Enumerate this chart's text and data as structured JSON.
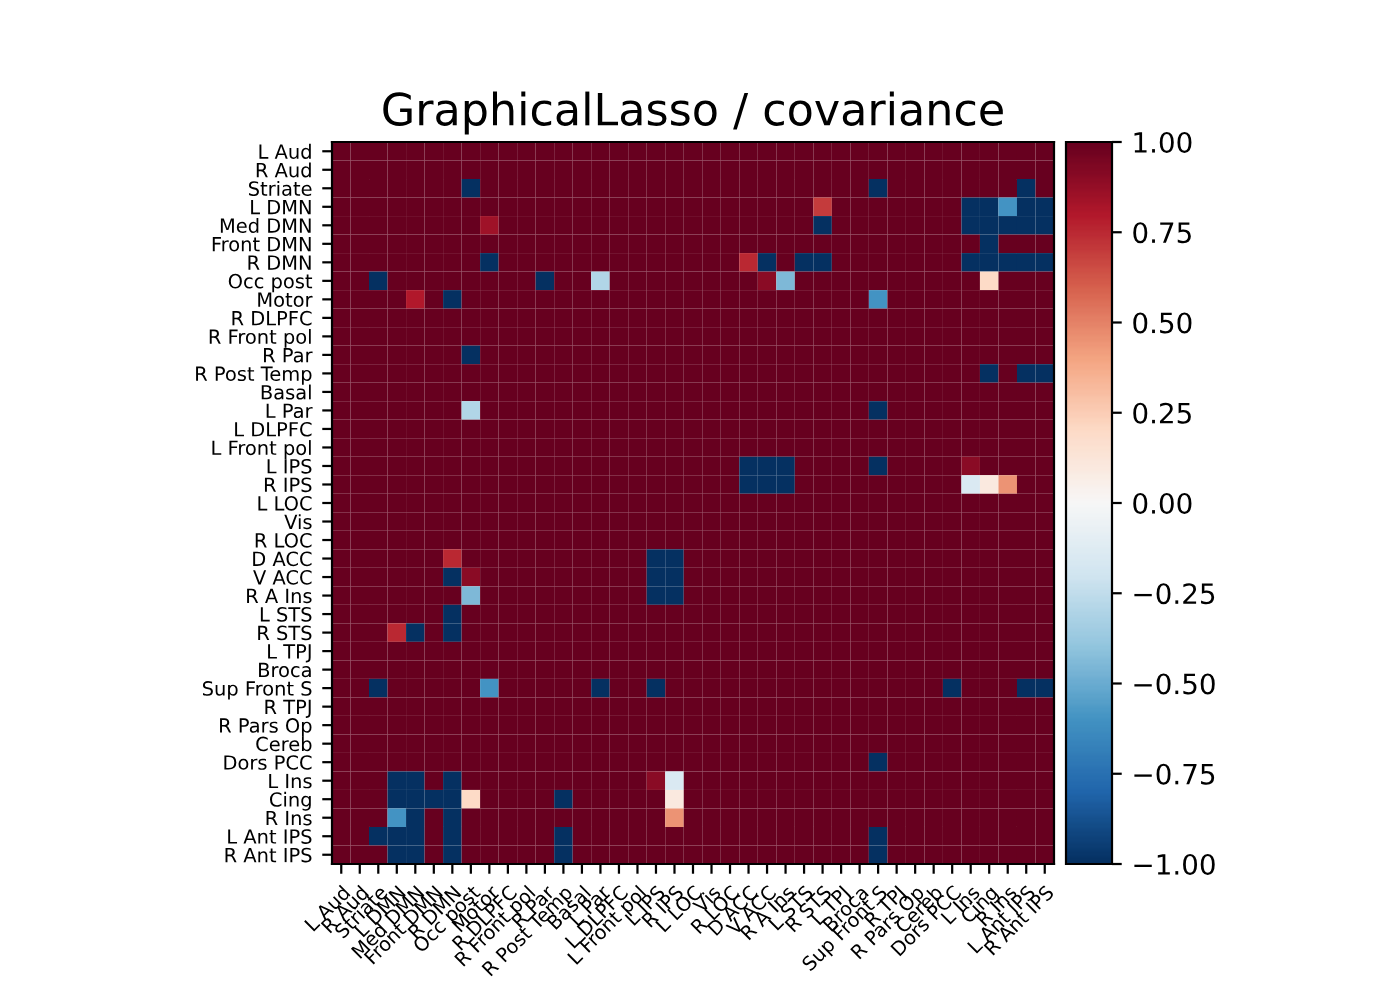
{
  "chart_data": {
    "type": "heatmap",
    "title": "GraphicalLasso / covariance",
    "categories": [
      "L Aud",
      "R Aud",
      "Striate",
      "L DMN",
      "Med DMN",
      "Front DMN",
      "R DMN",
      "Occ post",
      "Motor",
      "R DLPFC",
      "R Front pol",
      "R Par",
      "R Post Temp",
      "Basal",
      "L Par",
      "L DLPFC",
      "L Front pol",
      "L IPS",
      "R IPS",
      "L LOC",
      "Vis",
      "R LOC",
      "D ACC",
      "V ACC",
      "R A Ins",
      "L STS",
      "R STS",
      "L TPJ",
      "Broca",
      "Sup Front S",
      "R TPJ",
      "R Pars Op",
      "Cereb",
      "Dors PCC",
      "L Ins",
      "Cing",
      "R Ins",
      "L Ant IPS",
      "R Ant IPS"
    ],
    "y_categories": [
      "L Aud",
      "R Aud",
      "Striate",
      "L DMN",
      "Med DMN",
      "Front DMN",
      "R DMN",
      "Occ post",
      "Motor",
      "R DLPFC",
      "R Front pol",
      "R Par",
      "R Post Temp",
      "Basal",
      "L Par",
      "L DLPFC",
      "L Front pol",
      "L IPS",
      "R IPS",
      "L LOC",
      "Vis",
      "R LOC",
      "D ACC",
      "V ACC",
      "R A Ins",
      "L STS",
      "R STS",
      "L TPJ",
      "Broca",
      "Sup Front S",
      "R TPJ",
      "R Pars Op",
      "Cereb",
      "Dors PCC",
      "L Ins",
      "Cing",
      "R Ins",
      "L Ant IPS",
      "R Ant IPS"
    ],
    "cells": [
      [
        1,
        1,
        1,
        1,
        1,
        1,
        1,
        1,
        1,
        1,
        1,
        1,
        1,
        1,
        1,
        1,
        1,
        1,
        1,
        1,
        1,
        1,
        1,
        1,
        1,
        1,
        1,
        1,
        1,
        1,
        1,
        1,
        1,
        1,
        1,
        1,
        1,
        1,
        1
      ],
      [
        1,
        1,
        1,
        1,
        1,
        1,
        1,
        1,
        1,
        1,
        1,
        1,
        1,
        1,
        1,
        1,
        1,
        1,
        1,
        1,
        1,
        1,
        1,
        1,
        1,
        1,
        1,
        1,
        1,
        1,
        1,
        1,
        1,
        1,
        1,
        1,
        1,
        1,
        1
      ],
      [
        1,
        1,
        1,
        1,
        1,
        1,
        1,
        -1,
        1,
        1,
        1,
        1,
        1,
        1,
        1,
        1,
        1,
        1,
        1,
        1,
        1,
        1,
        1,
        1,
        1,
        1,
        1,
        1,
        1,
        -1,
        1,
        1,
        1,
        1,
        1,
        1,
        1,
        -1,
        1
      ],
      [
        1,
        1,
        1,
        1,
        1,
        1,
        1,
        1,
        1,
        1,
        1,
        1,
        1,
        1,
        1,
        1,
        1,
        1,
        1,
        1,
        1,
        1,
        1,
        1,
        1,
        1,
        0.7,
        1,
        1,
        1,
        1,
        1,
        1,
        1,
        -1,
        -1,
        -0.6,
        -1,
        -1
      ],
      [
        1,
        1,
        1,
        1,
        1,
        1,
        1,
        1,
        0.85,
        1,
        1,
        1,
        1,
        1,
        1,
        1,
        1,
        1,
        1,
        1,
        1,
        1,
        1,
        1,
        1,
        1,
        -1,
        1,
        1,
        1,
        1,
        1,
        1,
        1,
        -1,
        -1,
        -1,
        -1,
        -1
      ],
      [
        1,
        1,
        1,
        1,
        1,
        1,
        1,
        1,
        1,
        1,
        1,
        1,
        1,
        1,
        1,
        1,
        1,
        1,
        1,
        1,
        1,
        1,
        1,
        1,
        1,
        1,
        1,
        1,
        1,
        1,
        1,
        1,
        1,
        1,
        1,
        -1,
        1,
        1,
        1
      ],
      [
        1,
        1,
        1,
        1,
        1,
        1,
        1,
        1,
        -1,
        1,
        1,
        1,
        1,
        1,
        1,
        1,
        1,
        1,
        1,
        1,
        1,
        1,
        0.75,
        -1,
        1,
        -1,
        -1,
        1,
        1,
        1,
        1,
        1,
        1,
        1,
        -1,
        -1,
        -1,
        -1,
        -1
      ],
      [
        1,
        1,
        -1,
        1,
        1,
        1,
        1,
        1,
        1,
        1,
        1,
        -1,
        1,
        1,
        -0.3,
        1,
        1,
        1,
        1,
        1,
        1,
        1,
        1,
        0.9,
        -0.45,
        1,
        1,
        1,
        1,
        1,
        1,
        1,
        1,
        1,
        1,
        0.2,
        1,
        1,
        1
      ],
      [
        1,
        1,
        1,
        1,
        0.8,
        1,
        -1,
        1,
        1,
        1,
        1,
        1,
        1,
        1,
        1,
        1,
        1,
        1,
        1,
        1,
        1,
        1,
        1,
        1,
        1,
        1,
        1,
        1,
        1,
        -0.6,
        1,
        1,
        1,
        1,
        1,
        1,
        1,
        1,
        1
      ],
      [
        1,
        1,
        1,
        1,
        1,
        1,
        1,
        1,
        1,
        1,
        1,
        1,
        1,
        1,
        1,
        1,
        1,
        1,
        1,
        1,
        1,
        1,
        1,
        1,
        1,
        1,
        1,
        1,
        1,
        1,
        1,
        1,
        1,
        1,
        1,
        1,
        1,
        1,
        1
      ],
      [
        1,
        1,
        1,
        1,
        1,
        1,
        1,
        1,
        1,
        1,
        1,
        1,
        1,
        1,
        1,
        1,
        1,
        1,
        1,
        1,
        1,
        1,
        1,
        1,
        1,
        1,
        1,
        1,
        1,
        1,
        1,
        1,
        1,
        1,
        1,
        1,
        1,
        1,
        1
      ],
      [
        1,
        1,
        1,
        1,
        1,
        1,
        1,
        -1,
        1,
        1,
        1,
        1,
        1,
        1,
        1,
        1,
        1,
        1,
        1,
        1,
        1,
        1,
        1,
        1,
        1,
        1,
        1,
        1,
        1,
        1,
        1,
        1,
        1,
        1,
        1,
        1,
        1,
        1,
        1
      ],
      [
        1,
        1,
        1,
        1,
        1,
        1,
        1,
        1,
        1,
        1,
        1,
        1,
        1,
        1,
        1,
        1,
        1,
        1,
        1,
        1,
        1,
        1,
        1,
        1,
        1,
        1,
        1,
        1,
        1,
        1,
        1,
        1,
        1,
        1,
        1,
        -1,
        1,
        -1,
        -1
      ],
      [
        1,
        1,
        1,
        1,
        1,
        1,
        1,
        1,
        1,
        1,
        1,
        1,
        1,
        1,
        1,
        1,
        1,
        1,
        1,
        1,
        1,
        1,
        1,
        1,
        1,
        1,
        1,
        1,
        1,
        1,
        1,
        1,
        1,
        1,
        1,
        1,
        1,
        1,
        1
      ],
      [
        1,
        1,
        1,
        1,
        1,
        1,
        1,
        -0.3,
        1,
        1,
        1,
        1,
        1,
        1,
        1,
        1,
        1,
        1,
        1,
        1,
        1,
        1,
        1,
        1,
        1,
        1,
        1,
        1,
        1,
        -1,
        1,
        1,
        1,
        1,
        1,
        1,
        1,
        1,
        1
      ],
      [
        1,
        1,
        1,
        1,
        1,
        1,
        1,
        1,
        1,
        1,
        1,
        1,
        1,
        1,
        1,
        1,
        1,
        1,
        1,
        1,
        1,
        1,
        1,
        1,
        1,
        1,
        1,
        1,
        1,
        1,
        1,
        1,
        1,
        1,
        1,
        1,
        1,
        1,
        1
      ],
      [
        1,
        1,
        1,
        1,
        1,
        1,
        1,
        1,
        1,
        1,
        1,
        1,
        1,
        1,
        1,
        1,
        1,
        1,
        1,
        1,
        1,
        1,
        1,
        1,
        1,
        1,
        1,
        1,
        1,
        1,
        1,
        1,
        1,
        1,
        1,
        1,
        1,
        1,
        1
      ],
      [
        1,
        1,
        1,
        1,
        1,
        1,
        1,
        1,
        1,
        1,
        1,
        1,
        1,
        1,
        1,
        1,
        1,
        1,
        1,
        1,
        1,
        1,
        -1,
        -1,
        -1,
        1,
        1,
        1,
        1,
        -1,
        1,
        1,
        1,
        1,
        0.9,
        1,
        1,
        1,
        1
      ],
      [
        1,
        1,
        1,
        1,
        1,
        1,
        1,
        1,
        1,
        1,
        1,
        1,
        1,
        1,
        1,
        1,
        1,
        1,
        1,
        1,
        1,
        1,
        -1,
        -1,
        -1,
        1,
        1,
        1,
        1,
        1,
        1,
        1,
        1,
        1,
        -0.15,
        0.1,
        0.45,
        1,
        1
      ],
      [
        1,
        1,
        1,
        1,
        1,
        1,
        1,
        1,
        1,
        1,
        1,
        1,
        1,
        1,
        1,
        1,
        1,
        1,
        1,
        1,
        1,
        1,
        1,
        1,
        1,
        1,
        1,
        1,
        1,
        1,
        1,
        1,
        1,
        1,
        1,
        1,
        1,
        1,
        1
      ],
      [
        1,
        1,
        1,
        1,
        1,
        1,
        1,
        1,
        1,
        1,
        1,
        1,
        1,
        1,
        1,
        1,
        1,
        1,
        1,
        1,
        1,
        1,
        1,
        1,
        1,
        1,
        1,
        1,
        1,
        1,
        1,
        1,
        1,
        1,
        1,
        1,
        1,
        1,
        1
      ],
      [
        1,
        1,
        1,
        1,
        1,
        1,
        1,
        1,
        1,
        1,
        1,
        1,
        1,
        1,
        1,
        1,
        1,
        1,
        1,
        1,
        1,
        1,
        1,
        1,
        1,
        1,
        1,
        1,
        1,
        1,
        1,
        1,
        1,
        1,
        1,
        1,
        1,
        1,
        1
      ],
      [
        1,
        1,
        1,
        1,
        1,
        1,
        0.75,
        1,
        1,
        1,
        1,
        1,
        1,
        1,
        1,
        1,
        1,
        -1,
        -1,
        1,
        1,
        1,
        1,
        1,
        1,
        1,
        1,
        1,
        1,
        1,
        1,
        1,
        1,
        1,
        1,
        1,
        1,
        1,
        1
      ],
      [
        1,
        1,
        1,
        1,
        1,
        1,
        -1,
        0.9,
        1,
        1,
        1,
        1,
        1,
        1,
        1,
        1,
        1,
        -1,
        -1,
        1,
        1,
        1,
        1,
        1,
        1,
        1,
        1,
        1,
        1,
        1,
        1,
        1,
        1,
        1,
        1,
        1,
        1,
        1,
        1
      ],
      [
        1,
        1,
        1,
        1,
        1,
        1,
        1,
        -0.45,
        1,
        1,
        1,
        1,
        1,
        1,
        1,
        1,
        1,
        -1,
        -1,
        1,
        1,
        1,
        1,
        1,
        1,
        1,
        1,
        1,
        1,
        1,
        1,
        1,
        1,
        1,
        1,
        1,
        1,
        1,
        1
      ],
      [
        1,
        1,
        1,
        1,
        1,
        1,
        -1,
        1,
        1,
        1,
        1,
        1,
        1,
        1,
        1,
        1,
        1,
        1,
        1,
        1,
        1,
        1,
        1,
        1,
        1,
        1,
        1,
        1,
        1,
        1,
        1,
        1,
        1,
        1,
        1,
        1,
        1,
        1,
        1
      ],
      [
        1,
        1,
        1,
        0.75,
        -1,
        1,
        -1,
        1,
        1,
        1,
        1,
        1,
        1,
        1,
        1,
        1,
        1,
        1,
        1,
        1,
        1,
        1,
        1,
        1,
        1,
        1,
        1,
        1,
        1,
        1,
        1,
        1,
        1,
        1,
        1,
        1,
        1,
        1,
        1
      ],
      [
        1,
        1,
        1,
        1,
        1,
        1,
        1,
        1,
        1,
        1,
        1,
        1,
        1,
        1,
        1,
        1,
        1,
        1,
        1,
        1,
        1,
        1,
        1,
        1,
        1,
        1,
        1,
        1,
        1,
        1,
        1,
        1,
        1,
        1,
        1,
        1,
        1,
        1,
        1
      ],
      [
        1,
        1,
        1,
        1,
        1,
        1,
        1,
        1,
        1,
        1,
        1,
        1,
        1,
        1,
        1,
        1,
        1,
        1,
        1,
        1,
        1,
        1,
        1,
        1,
        1,
        1,
        1,
        1,
        1,
        1,
        1,
        1,
        1,
        1,
        1,
        1,
        1,
        1,
        1
      ],
      [
        1,
        1,
        -1,
        1,
        1,
        1,
        1,
        1,
        -0.6,
        1,
        1,
        1,
        1,
        1,
        -1,
        1,
        1,
        -1,
        1,
        1,
        1,
        1,
        1,
        1,
        1,
        1,
        1,
        1,
        1,
        1,
        1,
        1,
        1,
        -1,
        1,
        1,
        1,
        -1,
        -1
      ],
      [
        1,
        1,
        1,
        1,
        1,
        1,
        1,
        1,
        1,
        1,
        1,
        1,
        1,
        1,
        1,
        1,
        1,
        1,
        1,
        1,
        1,
        1,
        1,
        1,
        1,
        1,
        1,
        1,
        1,
        1,
        1,
        1,
        1,
        1,
        1,
        1,
        1,
        1,
        1
      ],
      [
        1,
        1,
        1,
        1,
        1,
        1,
        1,
        1,
        1,
        1,
        1,
        1,
        1,
        1,
        1,
        1,
        1,
        1,
        1,
        1,
        1,
        1,
        1,
        1,
        1,
        1,
        1,
        1,
        1,
        1,
        1,
        1,
        1,
        1,
        1,
        1,
        1,
        1,
        1
      ],
      [
        1,
        1,
        1,
        1,
        1,
        1,
        1,
        1,
        1,
        1,
        1,
        1,
        1,
        1,
        1,
        1,
        1,
        1,
        1,
        1,
        1,
        1,
        1,
        1,
        1,
        1,
        1,
        1,
        1,
        1,
        1,
        1,
        1,
        1,
        1,
        1,
        1,
        1,
        1
      ],
      [
        1,
        1,
        1,
        1,
        1,
        1,
        1,
        1,
        1,
        1,
        1,
        1,
        1,
        1,
        1,
        1,
        1,
        1,
        1,
        1,
        1,
        1,
        1,
        1,
        1,
        1,
        1,
        1,
        1,
        -1,
        1,
        1,
        1,
        1,
        1,
        1,
        1,
        1,
        1
      ],
      [
        1,
        1,
        1,
        -1,
        -1,
        1,
        -1,
        1,
        1,
        1,
        1,
        1,
        1,
        1,
        1,
        1,
        1,
        0.9,
        -0.15,
        1,
        1,
        1,
        1,
        1,
        1,
        1,
        1,
        1,
        1,
        1,
        1,
        1,
        1,
        1,
        1,
        1,
        1,
        1,
        1
      ],
      [
        1,
        1,
        1,
        -1,
        -1,
        -1,
        -1,
        0.2,
        1,
        1,
        1,
        1,
        -1,
        1,
        1,
        1,
        1,
        1,
        0.1,
        1,
        1,
        1,
        1,
        1,
        1,
        1,
        1,
        1,
        1,
        1,
        1,
        1,
        1,
        1,
        1,
        1,
        1,
        1,
        1
      ],
      [
        1,
        1,
        1,
        -0.6,
        -1,
        1,
        -1,
        1,
        1,
        1,
        1,
        1,
        1,
        1,
        1,
        1,
        1,
        1,
        0.45,
        1,
        1,
        1,
        1,
        1,
        1,
        1,
        1,
        1,
        1,
        1,
        1,
        1,
        1,
        1,
        1,
        1,
        1,
        1,
        1
      ],
      [
        1,
        1,
        -1,
        -1,
        -1,
        1,
        -1,
        1,
        1,
        1,
        1,
        1,
        -1,
        1,
        1,
        1,
        1,
        1,
        1,
        1,
        1,
        1,
        1,
        1,
        1,
        1,
        1,
        1,
        1,
        -1,
        1,
        1,
        1,
        1,
        1,
        1,
        1,
        1,
        1
      ],
      [
        1,
        1,
        1,
        -1,
        -1,
        1,
        -1,
        1,
        1,
        1,
        1,
        1,
        -1,
        1,
        1,
        1,
        1,
        1,
        1,
        1,
        1,
        1,
        1,
        1,
        1,
        1,
        1,
        1,
        1,
        -1,
        1,
        1,
        1,
        1,
        1,
        1,
        1,
        1,
        1
      ]
    ],
    "clim": [
      -1,
      1
    ],
    "cticks": [
      {
        "value": -1,
        "label": "−1.00"
      },
      {
        "value": -0.75,
        "label": "−0.75"
      },
      {
        "value": -0.5,
        "label": "−0.50"
      },
      {
        "value": -0.25,
        "label": "−0.25"
      },
      {
        "value": 0,
        "label": "0.00"
      },
      {
        "value": 0.25,
        "label": "0.25"
      },
      {
        "value": 0.5,
        "label": "0.50"
      },
      {
        "value": 0.75,
        "label": "0.75"
      },
      {
        "value": 1,
        "label": "1.00"
      }
    ]
  }
}
